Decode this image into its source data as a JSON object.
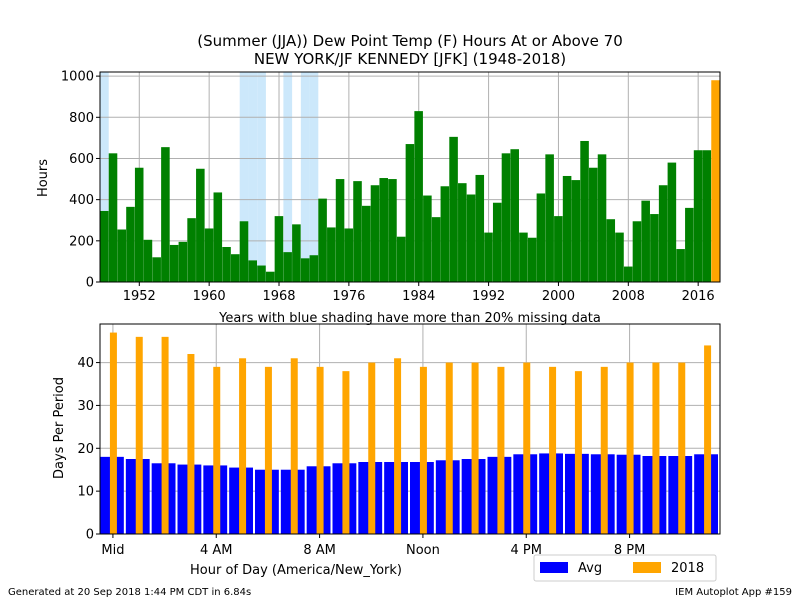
{
  "title": {
    "line1": "(Summer (JJA)) Dew Point Temp (F) Hours At or Above 70",
    "line2": "NEW YORK/JF KENNEDY [JFK] (1948-2018)"
  },
  "footer": {
    "left": "Generated at 20 Sep 2018 1:44 PM CDT in 6.84s",
    "right": "IEM Autoplot App #159"
  },
  "colors": {
    "yearly_bar": "#008000",
    "highlight_bar": "#FFA500",
    "missing_shade": "#cce8fb",
    "avg_bar": "#0000FF",
    "current_bar": "#FFA500",
    "grid": "#b0b0b0"
  },
  "chart_data": [
    {
      "type": "bar",
      "title": "(Summer (JJA)) Dew Point Temp (F) Hours At or Above 70",
      "subtitle": "NEW YORK/JF KENNEDY [JFK] (1948-2018)",
      "xlabel": "Years with blue shading have more than 20% missing data",
      "ylabel": "Hours",
      "xlim": [
        1947.5,
        2018.5
      ],
      "ylim": [
        0,
        1020
      ],
      "xticks": [
        1952,
        1960,
        1968,
        1976,
        1984,
        1992,
        2000,
        2008,
        2016
      ],
      "yticks": [
        0,
        200,
        400,
        600,
        800,
        1000
      ],
      "grid": true,
      "highlight_year": 2018,
      "missing_data_years": [
        1948,
        1964,
        1965,
        1966,
        1969,
        1971,
        1972
      ],
      "x": [
        1948,
        1949,
        1950,
        1951,
        1952,
        1953,
        1954,
        1955,
        1956,
        1957,
        1958,
        1959,
        1960,
        1961,
        1962,
        1963,
        1964,
        1965,
        1966,
        1967,
        1968,
        1969,
        1970,
        1971,
        1972,
        1973,
        1974,
        1975,
        1976,
        1977,
        1978,
        1979,
        1980,
        1981,
        1982,
        1983,
        1984,
        1985,
        1986,
        1987,
        1988,
        1989,
        1990,
        1991,
        1992,
        1993,
        1994,
        1995,
        1996,
        1997,
        1998,
        1999,
        2000,
        2001,
        2002,
        2003,
        2004,
        2005,
        2006,
        2007,
        2008,
        2009,
        2010,
        2011,
        2012,
        2013,
        2014,
        2015,
        2016,
        2017,
        2018
      ],
      "values": [
        345,
        625,
        255,
        365,
        555,
        205,
        120,
        655,
        180,
        195,
        310,
        550,
        260,
        435,
        170,
        135,
        295,
        105,
        80,
        50,
        320,
        145,
        280,
        115,
        130,
        405,
        265,
        500,
        260,
        490,
        370,
        470,
        505,
        500,
        220,
        670,
        830,
        420,
        315,
        465,
        705,
        480,
        425,
        520,
        240,
        385,
        625,
        645,
        240,
        215,
        430,
        620,
        320,
        515,
        495,
        685,
        555,
        620,
        305,
        240,
        75,
        295,
        395,
        330,
        470,
        580,
        160,
        360,
        640,
        640,
        980
      ]
    },
    {
      "type": "bar",
      "xlabel": "Hour of Day (America/New_York)",
      "ylabel": "Days Per Period",
      "ylim": [
        0,
        49
      ],
      "yticks": [
        0,
        10,
        20,
        30,
        40
      ],
      "xtick_labels": [
        {
          "hour": 0,
          "label": "Mid"
        },
        {
          "hour": 4,
          "label": "4 AM"
        },
        {
          "hour": 8,
          "label": "8 AM"
        },
        {
          "hour": 12,
          "label": "Noon"
        },
        {
          "hour": 16,
          "label": "4 PM"
        },
        {
          "hour": 20,
          "label": "8 PM"
        }
      ],
      "grid": true,
      "legend": {
        "position": "bottom-right",
        "entries": [
          "Avg",
          "2018"
        ]
      },
      "hours": [
        0,
        1,
        2,
        3,
        4,
        5,
        6,
        7,
        8,
        9,
        10,
        11,
        12,
        13,
        14,
        15,
        16,
        17,
        18,
        19,
        20,
        21,
        22,
        23
      ],
      "series": [
        {
          "name": "Avg",
          "values": [
            18.0,
            17.5,
            16.5,
            16.2,
            16.0,
            15.5,
            15.0,
            15.0,
            15.8,
            16.5,
            16.8,
            16.8,
            16.8,
            17.2,
            17.5,
            18.0,
            18.6,
            18.8,
            18.7,
            18.6,
            18.5,
            18.2,
            18.2,
            18.6
          ]
        },
        {
          "name": "2018",
          "values": [
            47,
            46,
            46,
            42,
            39,
            41,
            39,
            41,
            39,
            38,
            40,
            41,
            39,
            40,
            40,
            39,
            40,
            39,
            38,
            39,
            40,
            40,
            40,
            44
          ]
        }
      ]
    }
  ]
}
